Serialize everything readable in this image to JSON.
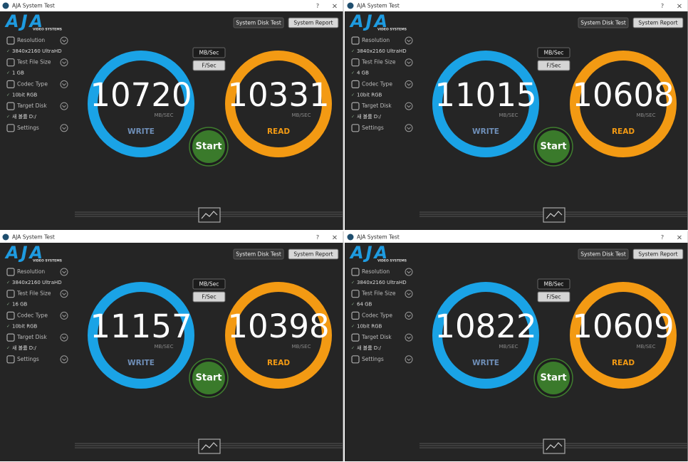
{
  "windows": [
    {
      "title": "AJA System Test",
      "help": "?",
      "close": "×",
      "logo": "AJA",
      "logo_sub": "VIDEO SYSTEMS",
      "buttons": [
        "System Disk Test",
        "System Report"
      ],
      "settings": [
        {
          "label": "Resolution",
          "value": "3840x2160 UltraHD"
        },
        {
          "label": "Test File Size",
          "value": "1 GB"
        },
        {
          "label": "Codec Type",
          "value": "10bit RGB"
        },
        {
          "label": "Target Disk",
          "value": "새 볼륨 D:/"
        },
        {
          "label": "Settings"
        }
      ],
      "units": [
        "MB/Sec",
        "F/Sec"
      ],
      "write": {
        "value": 10720,
        "unit": "MB/SEC",
        "label": "WRITE"
      },
      "read": {
        "value": 10331,
        "unit": "MB/SEC",
        "label": "READ"
      },
      "start": "Start"
    },
    {
      "title": "AJA System Test",
      "help": "?",
      "close": "×",
      "logo": "AJA",
      "logo_sub": "VIDEO SYSTEMS",
      "buttons": [
        "System Disk Test",
        "System Report"
      ],
      "settings": [
        {
          "label": "Resolution",
          "value": "3840x2160 UltraHD"
        },
        {
          "label": "Test File Size",
          "value": "4 GB"
        },
        {
          "label": "Codec Type",
          "value": "10bit RGB"
        },
        {
          "label": "Target Disk",
          "value": "새 볼륨 D:/"
        },
        {
          "label": "Settings"
        }
      ],
      "units": [
        "MB/Sec",
        "F/Sec"
      ],
      "write": {
        "value": 11015,
        "unit": "MB/SEC",
        "label": "WRITE"
      },
      "read": {
        "value": 10608,
        "unit": "MB/SEC",
        "label": "READ"
      },
      "start": "Start"
    },
    {
      "title": "AJA System Test",
      "help": "?",
      "close": "×",
      "logo": "AJA",
      "logo_sub": "VIDEO SYSTEMS",
      "buttons": [
        "System Disk Test",
        "System Report"
      ],
      "settings": [
        {
          "label": "Resolution",
          "value": "3840x2160 UltraHD"
        },
        {
          "label": "Test File Size",
          "value": "16 GB"
        },
        {
          "label": "Codec Type",
          "value": "10bit RGB"
        },
        {
          "label": "Target Disk",
          "value": "새 볼륨 D:/"
        },
        {
          "label": "Settings"
        }
      ],
      "units": [
        "MB/Sec",
        "F/Sec"
      ],
      "write": {
        "value": 11157,
        "unit": "MB/SEC",
        "label": "WRITE"
      },
      "read": {
        "value": 10398,
        "unit": "MB/SEC",
        "label": "READ"
      },
      "start": "Start"
    },
    {
      "title": "AJA System Test",
      "help": "?",
      "close": "×",
      "logo": "AJA",
      "logo_sub": "VIDEO SYSTEMS",
      "buttons": [
        "System Disk Test",
        "System Report"
      ],
      "settings": [
        {
          "label": "Resolution",
          "value": "3840x2160 UltraHD"
        },
        {
          "label": "Test File Size",
          "value": "64 GB"
        },
        {
          "label": "Codec Type",
          "value": "10bit RGB"
        },
        {
          "label": "Target Disk",
          "value": "새 볼륨 D:/"
        },
        {
          "label": "Settings"
        }
      ],
      "units": [
        "MB/Sec",
        "F/Sec"
      ],
      "write": {
        "value": 10822,
        "unit": "MB/SEC",
        "label": "WRITE"
      },
      "read": {
        "value": 10609,
        "unit": "MB/SEC",
        "label": "READ"
      },
      "start": "Start"
    }
  ]
}
